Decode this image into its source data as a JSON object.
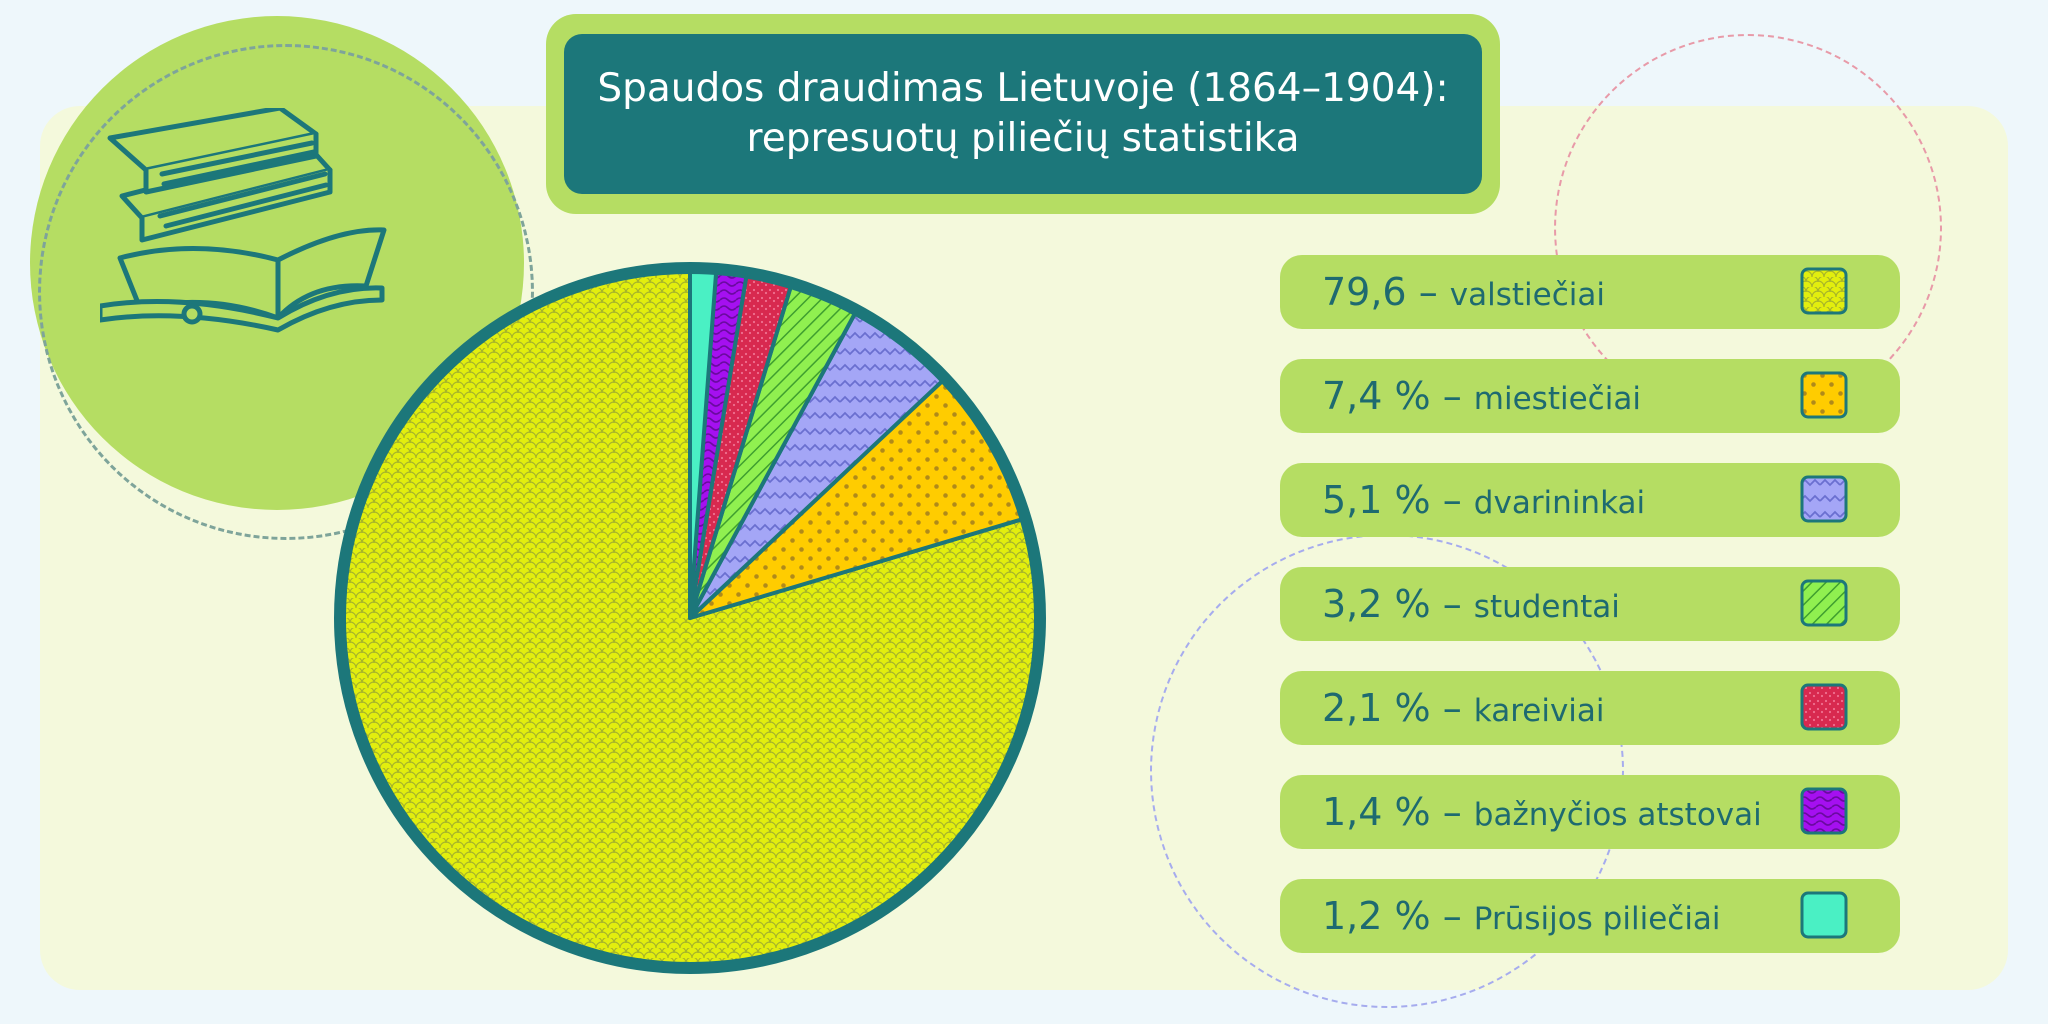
{
  "title": {
    "line1": "Spaudos draudimas Lietuvoje (1864–1904):",
    "line2": "represuotų piliečių statistika"
  },
  "decoration": {
    "illustration": "stack-of-books-icon"
  },
  "chart_data": {
    "type": "pie",
    "title": "Spaudos draudimas Lietuvoje (1864–1904): represuotų piliečių statistika",
    "unit": "%",
    "categories": [
      "valstiečiai",
      "miestiečiai",
      "dvarininkai",
      "studentai",
      "kareiviai",
      "bažnyčios atstovai",
      "Prūsijos piliečiai"
    ],
    "values": [
      79.6,
      7.4,
      5.1,
      3.2,
      2.1,
      1.4,
      1.2
    ],
    "legend_position": "right"
  },
  "legend": [
    {
      "value": "79,6",
      "label": "valstiečiai",
      "color": "#e2ee0e",
      "pattern_color": "#a6b42a",
      "pattern": "scales"
    },
    {
      "value": "7,4 %",
      "label": "miestiečiai",
      "color": "#ffcc00",
      "pattern_color": "#b08a1a",
      "pattern": "dots"
    },
    {
      "value": "5,1 %",
      "label": "dvarininkai",
      "color": "#a4a6f6",
      "pattern_color": "#6a6fd0",
      "pattern": "zigzag"
    },
    {
      "value": "3,2 %",
      "label": "studentai",
      "color": "#90f050",
      "pattern_color": "#3f9f2f",
      "pattern": "diagonal"
    },
    {
      "value": "2,1 %",
      "label": "kareiviai",
      "color": "#d8294f",
      "pattern_color": "#f07090",
      "pattern": "speckle"
    },
    {
      "value": "1,4 %",
      "label": "bažnyčios atstovai",
      "color": "#a510f0",
      "pattern_color": "#6a0aa0",
      "pattern": "waves"
    },
    {
      "value": "1,2 %",
      "label": "Prūsijos piliečiai",
      "color": "#4af0c4",
      "pattern_color": "#4af0c4",
      "pattern": "solid"
    }
  ],
  "colors": {
    "outline": "#1c777a",
    "accent": "#b5dd63",
    "text": "#1e6a70",
    "background": "#f4f9dc"
  }
}
